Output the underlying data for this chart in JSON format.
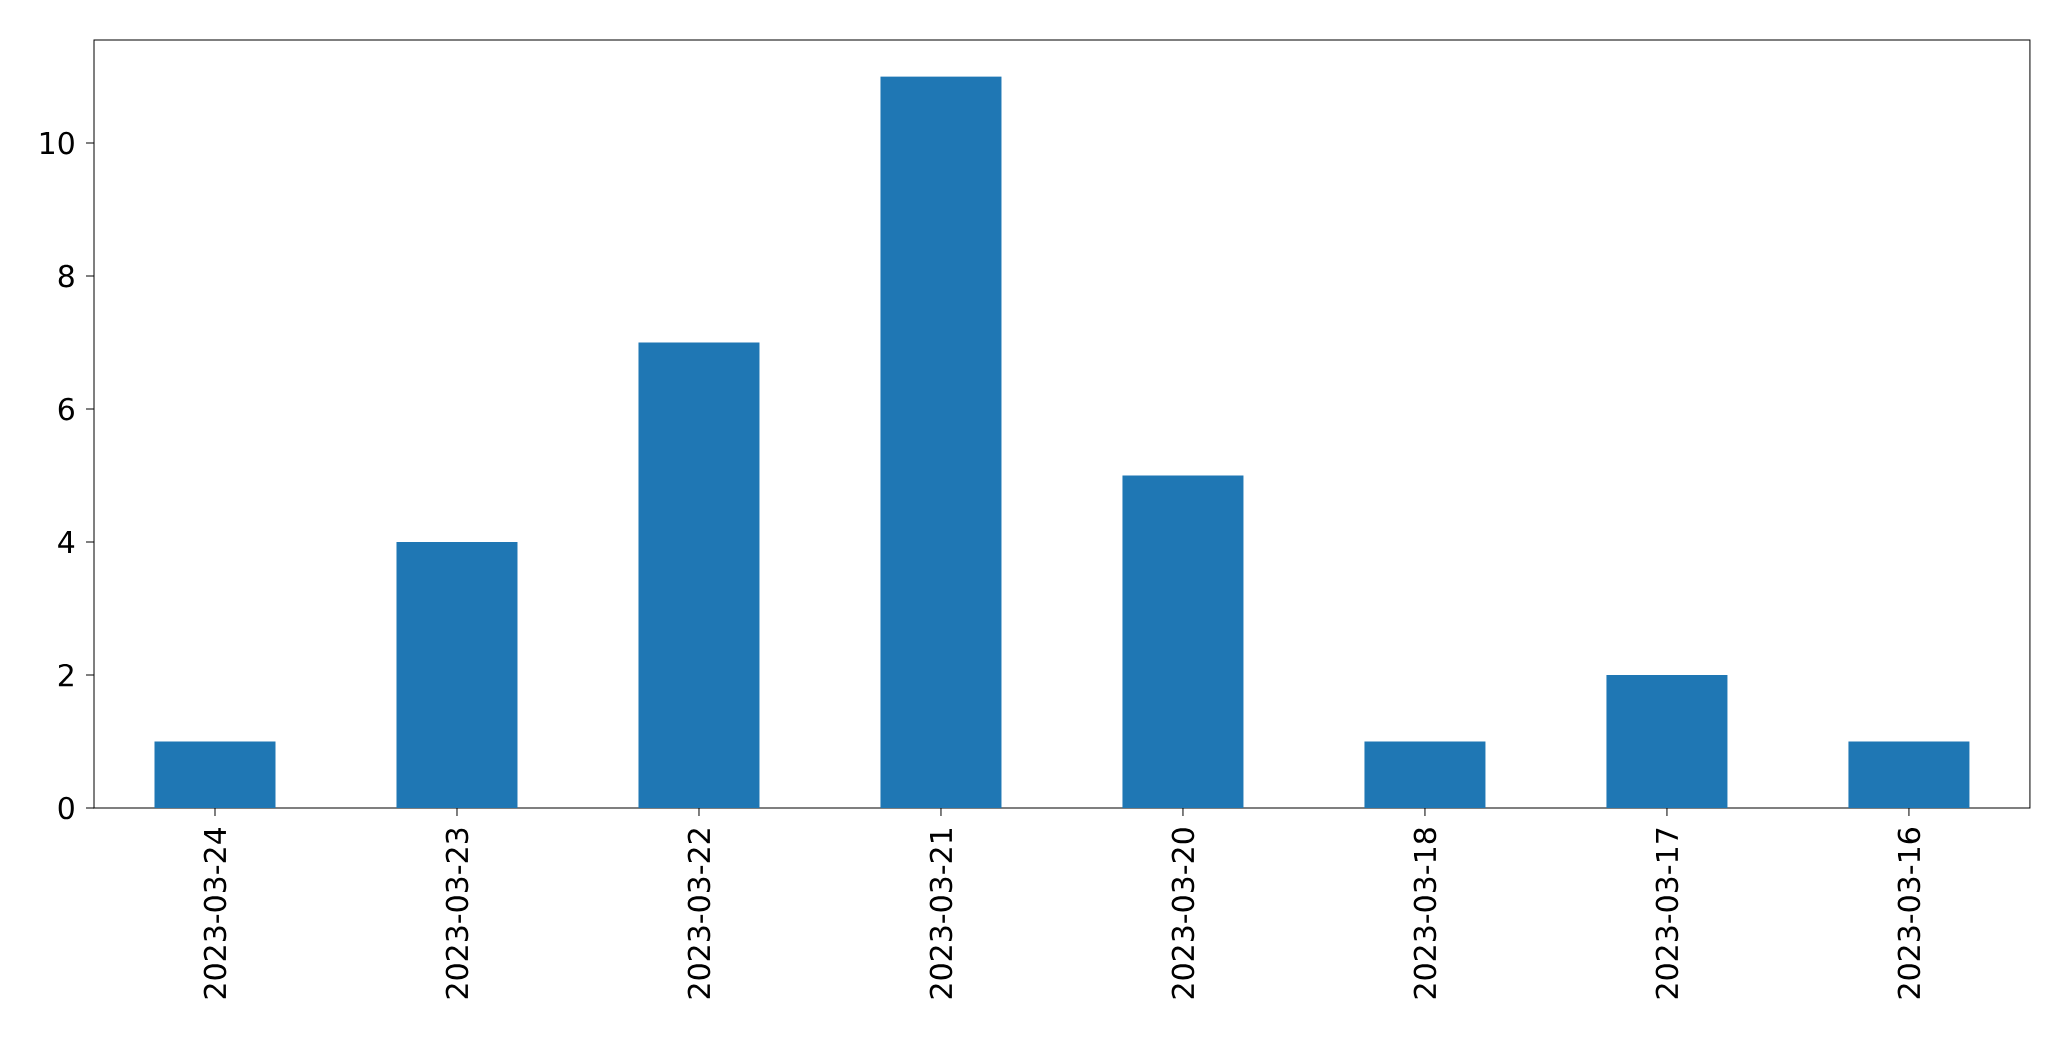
{
  "chart_data": {
    "type": "bar",
    "categories": [
      "2023-03-24",
      "2023-03-23",
      "2023-03-22",
      "2023-03-21",
      "2023-03-20",
      "2023-03-18",
      "2023-03-17",
      "2023-03-16"
    ],
    "values": [
      1,
      4,
      7,
      11,
      5,
      1,
      2,
      1
    ],
    "color": "#1f77b4",
    "ylim": [
      0,
      11.55
    ],
    "yticks": [
      0,
      2,
      4,
      6,
      8,
      10
    ]
  }
}
